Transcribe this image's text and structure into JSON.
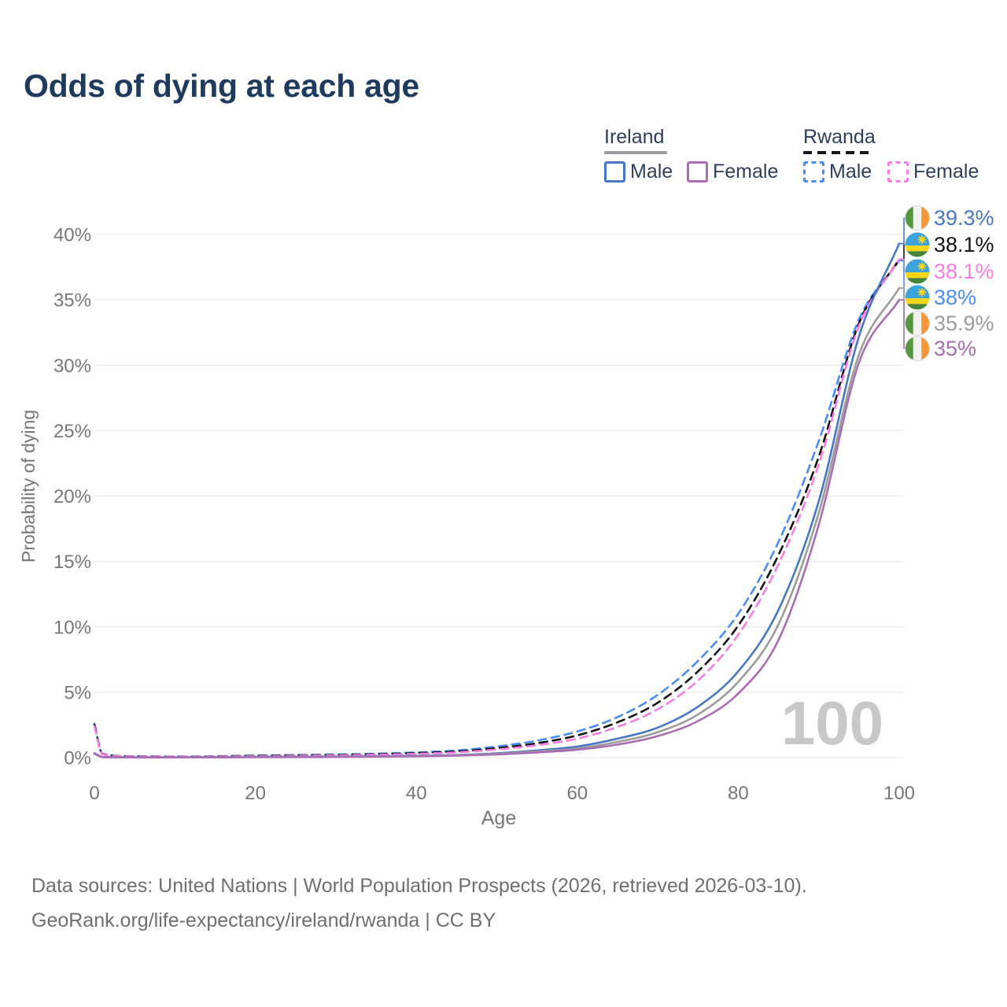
{
  "title": "Odds of dying at each age",
  "legend": {
    "ireland": {
      "label": "Ireland",
      "male": "Male",
      "female": "Female"
    },
    "rwanda": {
      "label": "Rwanda",
      "male": "Male",
      "female": "Female"
    }
  },
  "colors": {
    "ireland_male": "#4677c4",
    "ireland_female": "#aa6cb2",
    "ireland_all": "#9c9c9c",
    "rwanda_male": "#4a8cf5",
    "rwanda_female": "#f97ce1",
    "rwanda_all": "#141414",
    "flag_ireland_green": "#55973f",
    "flag_ireland_orange": "#f69638",
    "flag_rwanda_blue": "#3ea3dc",
    "flag_rwanda_yellow": "#f9d616",
    "flag_rwanda_green": "#45853a",
    "grid": "#e9e9eb",
    "axis_text": "#77777a",
    "watermark_gray": "#c8c8c9"
  },
  "chart_data": {
    "type": "line",
    "title": "Odds of dying at each age",
    "xlabel": "Age",
    "ylabel": "Probability of dying",
    "xlim": [
      0,
      100
    ],
    "ylim": [
      0,
      40
    ],
    "x_ticks": [
      0,
      20,
      40,
      60,
      80,
      100
    ],
    "y_tick_labels": [
      "0%",
      "5%",
      "10%",
      "15%",
      "20%",
      "25%",
      "30%",
      "35%",
      "40%"
    ],
    "grid": "horizontal",
    "legend_position": "top-right",
    "watermark": "100",
    "ages": [
      0,
      1,
      5,
      10,
      15,
      20,
      25,
      30,
      35,
      40,
      45,
      50,
      55,
      60,
      65,
      70,
      75,
      80,
      85,
      90,
      95,
      100
    ],
    "series": [
      {
        "name": "Ireland Male",
        "country": "ireland",
        "sex": "male",
        "style": "solid",
        "color_key": "ireland_male",
        "end_label": "39.3%",
        "values": [
          0.35,
          0.05,
          0.02,
          0.02,
          0.04,
          0.06,
          0.07,
          0.08,
          0.1,
          0.14,
          0.2,
          0.33,
          0.55,
          0.85,
          1.45,
          2.3,
          3.9,
          6.6,
          11.3,
          19.6,
          32.2,
          39.3
        ]
      },
      {
        "name": "Rwanda",
        "country": "rwanda",
        "sex": "both",
        "style": "dashed",
        "color_key": "rwanda_all",
        "end_label": "38.1%",
        "values": [
          2.5,
          0.28,
          0.09,
          0.07,
          0.09,
          0.13,
          0.17,
          0.2,
          0.26,
          0.34,
          0.47,
          0.72,
          1.1,
          1.7,
          2.7,
          4.2,
          6.6,
          10.1,
          15.5,
          23.0,
          33.2,
          38.1
        ]
      },
      {
        "name": "Rwanda Female",
        "country": "rwanda",
        "sex": "female",
        "style": "dashed",
        "color_key": "rwanda_female",
        "end_label": "38.1%",
        "values": [
          2.4,
          0.26,
          0.08,
          0.06,
          0.08,
          0.1,
          0.14,
          0.17,
          0.22,
          0.29,
          0.4,
          0.62,
          0.95,
          1.45,
          2.35,
          3.7,
          5.9,
          9.4,
          14.8,
          22.4,
          33.0,
          38.1
        ]
      },
      {
        "name": "Rwanda Male",
        "country": "rwanda",
        "sex": "male",
        "style": "dashed",
        "color_key": "rwanda_male",
        "end_label": "38%",
        "values": [
          2.6,
          0.3,
          0.1,
          0.08,
          0.1,
          0.16,
          0.2,
          0.24,
          0.3,
          0.4,
          0.55,
          0.85,
          1.3,
          2.0,
          3.1,
          4.8,
          7.4,
          11.0,
          16.5,
          24.2,
          33.5,
          38.0
        ]
      },
      {
        "name": "Ireland",
        "country": "ireland",
        "sex": "both",
        "style": "solid",
        "color_key": "ireland_all",
        "end_label": "35.9%",
        "values": [
          0.32,
          0.04,
          0.02,
          0.02,
          0.03,
          0.05,
          0.06,
          0.07,
          0.09,
          0.12,
          0.18,
          0.28,
          0.47,
          0.7,
          1.2,
          1.95,
          3.3,
          5.8,
          10.2,
          18.7,
          30.8,
          35.9
        ]
      },
      {
        "name": "Ireland Female",
        "country": "ireland",
        "sex": "female",
        "style": "solid",
        "color_key": "ireland_female",
        "end_label": "35%",
        "values": [
          0.3,
          0.04,
          0.01,
          0.01,
          0.02,
          0.03,
          0.04,
          0.05,
          0.07,
          0.1,
          0.15,
          0.24,
          0.4,
          0.6,
          1.0,
          1.65,
          2.8,
          4.9,
          9.0,
          17.8,
          30.2,
          35.0
        ]
      }
    ]
  },
  "footer": {
    "line1": "Data sources: United Nations | World Population Prospects (2026, retrieved 2026-03-10).",
    "line2": "GeoRank.org/life-expectancy/ireland/rwanda | CC BY"
  }
}
